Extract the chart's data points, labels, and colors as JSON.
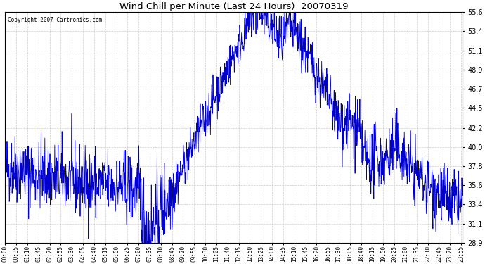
{
  "title": "Wind Chill per Minute (Last 24 Hours)  20070319",
  "copyright": "Copyright 2007 Cartronics.com",
  "line_color": "#0000cc",
  "background_color": "#ffffff",
  "grid_color": "#cccccc",
  "ylim": [
    28.9,
    55.6
  ],
  "yticks": [
    28.9,
    31.1,
    33.4,
    35.6,
    37.8,
    40.0,
    42.2,
    44.5,
    46.7,
    48.9,
    51.1,
    53.4,
    55.6
  ],
  "xtick_labels": [
    "00:00",
    "00:35",
    "01:10",
    "01:45",
    "02:20",
    "02:55",
    "03:30",
    "04:05",
    "04:40",
    "05:15",
    "05:50",
    "06:25",
    "07:00",
    "07:35",
    "08:10",
    "08:45",
    "09:20",
    "09:55",
    "10:30",
    "11:05",
    "11:40",
    "12:15",
    "12:50",
    "13:25",
    "14:00",
    "14:35",
    "15:10",
    "15:45",
    "16:20",
    "16:55",
    "17:30",
    "18:05",
    "18:40",
    "19:15",
    "19:50",
    "20:25",
    "21:00",
    "21:35",
    "22:10",
    "22:45",
    "23:20",
    "23:55"
  ],
  "noise_seed": 42
}
